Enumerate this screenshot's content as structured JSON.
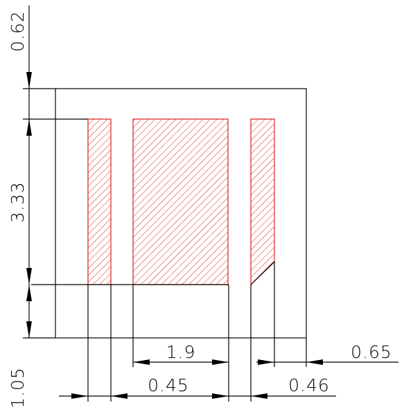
{
  "dimensions": {
    "top_offset": "0.62",
    "height": "3.33",
    "bottom_offset": "1.05",
    "center_width": "1.9",
    "left_gap": "0.45",
    "right_gap": "0.46",
    "right_margin": "0.65"
  },
  "colors": {
    "line": "#000000",
    "hatch": "#d81e1e",
    "background": "#ffffff"
  }
}
